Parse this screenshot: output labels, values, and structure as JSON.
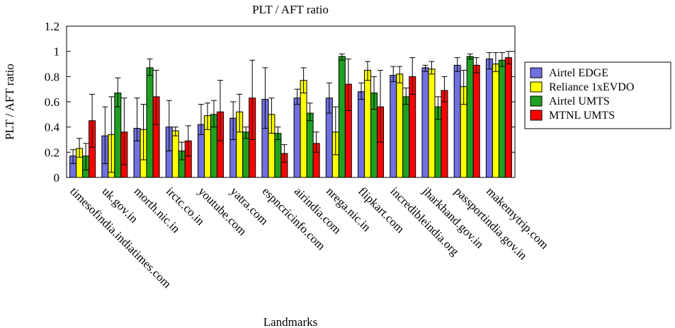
{
  "chart_data": {
    "type": "bar",
    "title": "PLT / AFT ratio",
    "xlabel": "Landmarks",
    "ylabel": "PLT / AFT ratio",
    "ylim": [
      0,
      1.2
    ],
    "yticks": [
      "0",
      "0.2",
      "0.4",
      "0.6",
      "0.8",
      "1",
      "1.2"
    ],
    "grid": false,
    "legend_position": "right",
    "error_bars": true,
    "categories": [
      "timesofindia.indiatimes.com",
      "uk.gov.in",
      "morth.nic.in",
      "irctc.co.in",
      "youtube.com",
      "yatra.com",
      "espncricinfo.com",
      "airindia.com",
      "nrega.nic.in",
      "flipkart.com",
      "incredibleindia.org",
      "jharkhand.gov.in",
      "passportindia.gov.in",
      "makemytrip.com"
    ],
    "series": [
      {
        "name": "Airtel EDGE",
        "color": "#7070e0",
        "values": [
          0.17,
          0.33,
          0.39,
          0.4,
          0.42,
          0.47,
          0.62,
          0.63,
          0.63,
          0.68,
          0.81,
          0.87,
          0.89,
          0.94
        ],
        "err": [
          [
            0.11,
            0.22
          ],
          [
            0.11,
            0.56
          ],
          [
            0.29,
            0.63
          ],
          [
            0.21,
            0.61
          ],
          [
            0.34,
            0.58
          ],
          [
            0.3,
            0.6
          ],
          [
            0.39,
            0.87
          ],
          [
            0.58,
            0.7
          ],
          [
            0.51,
            0.75
          ],
          [
            0.62,
            0.75
          ],
          [
            0.76,
            0.88
          ],
          [
            0.84,
            0.89
          ],
          [
            0.84,
            0.95
          ],
          [
            0.86,
            0.99
          ]
        ]
      },
      {
        "name": "Reliance 1xEVDO",
        "color": "#ffff00",
        "values": [
          0.23,
          0.34,
          0.38,
          0.37,
          0.49,
          0.52,
          0.5,
          0.77,
          0.36,
          0.85,
          0.82,
          0.86,
          0.72,
          0.9
        ],
        "err": [
          [
            0.16,
            0.31
          ],
          [
            0.04,
            0.64
          ],
          [
            0.14,
            0.58
          ],
          [
            0.33,
            0.4
          ],
          [
            0.38,
            0.59
          ],
          [
            0.36,
            0.66
          ],
          [
            0.35,
            0.63
          ],
          [
            0.67,
            0.87
          ],
          [
            0.18,
            0.56
          ],
          [
            0.77,
            0.92
          ],
          [
            0.75,
            0.88
          ],
          [
            0.82,
            0.92
          ],
          [
            0.58,
            0.85
          ],
          [
            0.84,
            0.99
          ]
        ]
      },
      {
        "name": "Airtel UMTS",
        "color": "#20a020",
        "values": [
          0.17,
          0.67,
          0.87,
          0.21,
          0.5,
          0.36,
          0.35,
          0.51,
          0.96,
          0.67,
          0.64,
          0.56,
          0.96,
          0.93
        ],
        "err": [
          [
            0.06,
            0.27
          ],
          [
            0.56,
            0.79
          ],
          [
            0.81,
            0.94
          ],
          [
            0.14,
            0.28
          ],
          [
            0.4,
            0.61
          ],
          [
            0.31,
            0.4
          ],
          [
            0.3,
            0.4
          ],
          [
            0.45,
            0.59
          ],
          [
            0.93,
            0.98
          ],
          [
            0.54,
            0.8
          ],
          [
            0.58,
            0.71
          ],
          [
            0.46,
            0.64
          ],
          [
            0.94,
            0.98
          ],
          [
            0.88,
            0.99
          ]
        ]
      },
      {
        "name": "MTNL UMTS",
        "color": "#ff0000",
        "values": [
          0.45,
          0.36,
          0.64,
          0.29,
          0.52,
          0.63,
          0.19,
          0.27,
          0.74,
          0.56,
          0.8,
          0.69,
          0.89,
          0.95
        ],
        "err": [
          [
            0.24,
            0.66
          ],
          [
            0.1,
            0.63
          ],
          [
            0.42,
            0.85
          ],
          [
            0.17,
            0.41
          ],
          [
            0.29,
            0.77
          ],
          [
            0.3,
            0.93
          ],
          [
            0.12,
            0.26
          ],
          [
            0.2,
            0.36
          ],
          [
            0.53,
            0.94
          ],
          [
            0.28,
            0.85
          ],
          [
            0.66,
            0.95
          ],
          [
            0.6,
            0.8
          ],
          [
            0.83,
            0.95
          ],
          [
            0.9,
            1.0
          ]
        ]
      }
    ]
  }
}
